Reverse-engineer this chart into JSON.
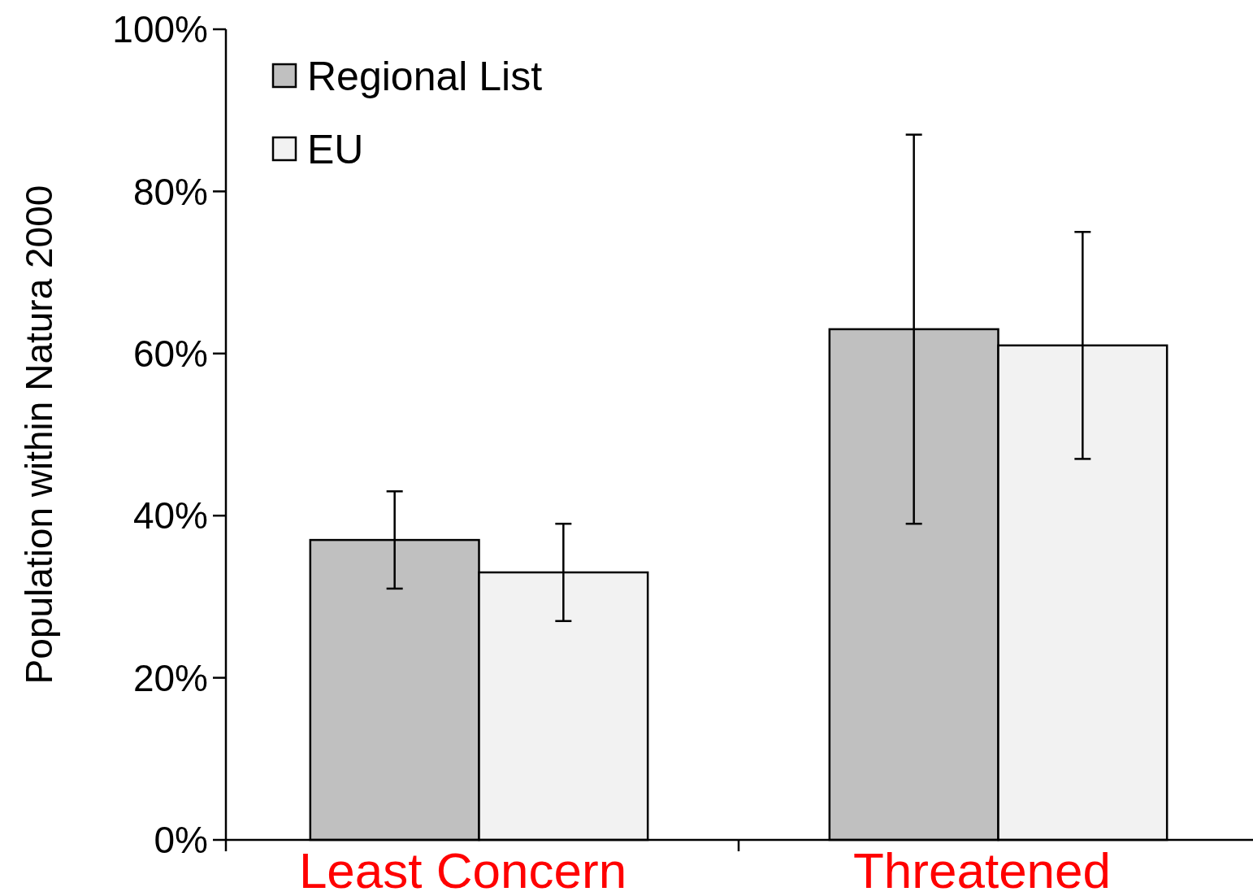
{
  "chart_data": {
    "type": "bar",
    "ylabel": "Population within Natura 2000",
    "categories": [
      "Least Concern",
      "Threatened"
    ],
    "series": [
      {
        "name": "Regional List",
        "color": "#c0c0c0",
        "values": [
          37,
          63
        ],
        "errors": [
          [
            31,
            43
          ],
          [
            39,
            87
          ]
        ]
      },
      {
        "name": "EU",
        "color": "#f2f2f2",
        "values": [
          33,
          61
        ],
        "errors": [
          [
            27,
            39
          ],
          [
            47,
            75
          ]
        ]
      }
    ],
    "ylim": [
      0,
      100
    ],
    "yticks": [
      {
        "value": 0,
        "label": "0%"
      },
      {
        "value": 20,
        "label": "20%"
      },
      {
        "value": 40,
        "label": "40%"
      },
      {
        "value": 60,
        "label": "60%"
      },
      {
        "value": 80,
        "label": "80%"
      },
      {
        "value": 100,
        "label": "100%"
      }
    ],
    "grid": false,
    "legend": "top left"
  }
}
